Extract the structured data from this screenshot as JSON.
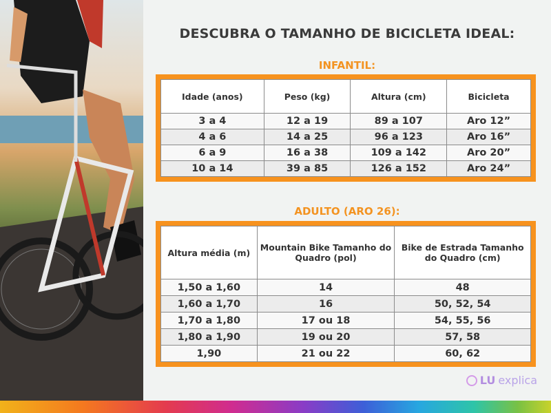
{
  "title": "DESCUBRA O TAMANHO DE BICICLETA IDEAL:",
  "infantil": {
    "heading": "INFANTIL:",
    "headers": [
      "Idade (anos)",
      "Peso (kg)",
      "Altura (cm)",
      "Bicicleta"
    ],
    "rows": [
      [
        "3 a 4",
        "12 a 19",
        "89 a 107",
        "Aro 12”"
      ],
      [
        "4 a 6",
        "14 a 25",
        "96 a 123",
        "Aro 16”"
      ],
      [
        "6 a 9",
        "16 a 38",
        "109 a 142",
        "Aro 20”"
      ],
      [
        "10 a 14",
        "39 a 85",
        "126 a 152",
        "Aro 24”"
      ]
    ]
  },
  "adulto": {
    "heading": "ADULTO (ARO 26):",
    "headers": [
      "Altura média (m)",
      "Mountain Bike Tamanho do Quadro (pol)",
      "Bike de Estrada Tamanho do Quadro (cm)"
    ],
    "rows": [
      [
        "1,50 a 1,60",
        "14",
        "48"
      ],
      [
        "1,60 a 1,70",
        "16",
        "50, 52, 54"
      ],
      [
        "1,70 a 1,80",
        "17 ou 18",
        "54, 55, 56"
      ],
      [
        "1,80 a 1,90",
        "19 ou 20",
        "57, 58"
      ],
      [
        "1,90",
        "21 ou 22",
        "60, 62"
      ]
    ]
  },
  "logo": {
    "brand": "LU",
    "suffix": "explica",
    "icon": "chat-heart-icon"
  },
  "colors": {
    "accent": "#f7921e",
    "heading": "#3a3a3a"
  }
}
